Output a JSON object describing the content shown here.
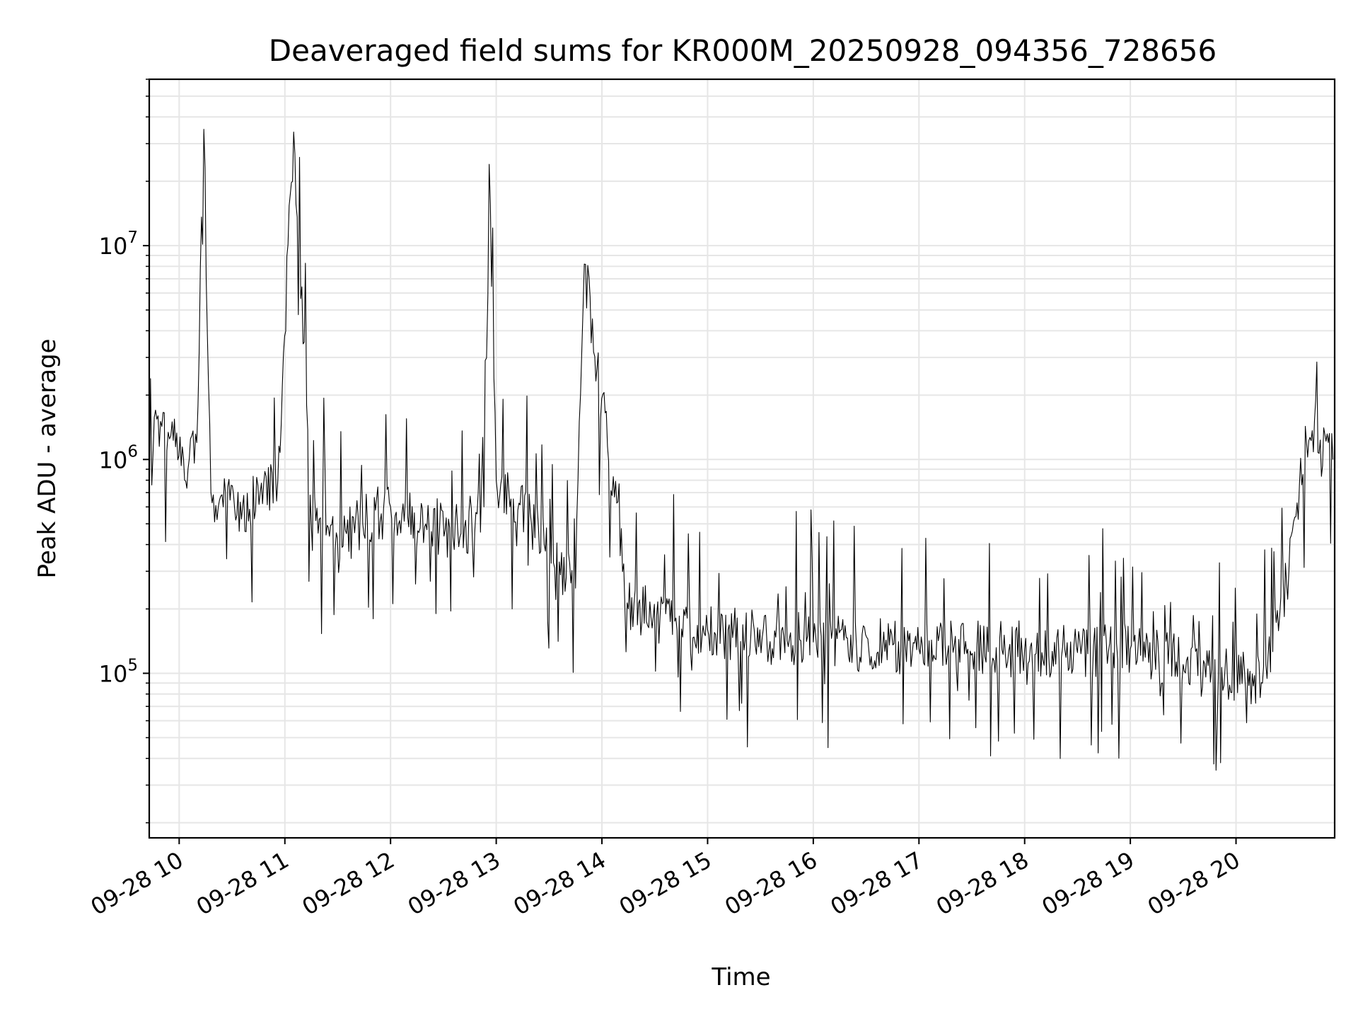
{
  "chart_data": {
    "type": "line",
    "title": "Deaveraged field sums for KR000M_20250928_094356_728656",
    "xlabel": "Time",
    "ylabel": "Peak ADU - average",
    "yscale": "log",
    "ylim": [
      17000,
      60000000
    ],
    "xlim": [
      "2025-09-28 09:43",
      "2025-09-28 20:56"
    ],
    "grid": true,
    "line_color": "#000000",
    "grid_color": "#e6e6e6",
    "x_ticks": [
      {
        "t": "2025-09-28 10:00",
        "label": "09-28 10"
      },
      {
        "t": "2025-09-28 11:00",
        "label": "09-28 11"
      },
      {
        "t": "2025-09-28 12:00",
        "label": "09-28 12"
      },
      {
        "t": "2025-09-28 13:00",
        "label": "09-28 13"
      },
      {
        "t": "2025-09-28 14:00",
        "label": "09-28 14"
      },
      {
        "t": "2025-09-28 15:00",
        "label": "09-28 15"
      },
      {
        "t": "2025-09-28 16:00",
        "label": "09-28 16"
      },
      {
        "t": "2025-09-28 17:00",
        "label": "09-28 17"
      },
      {
        "t": "2025-09-28 18:00",
        "label": "09-28 18"
      },
      {
        "t": "2025-09-28 19:00",
        "label": "09-28 19"
      },
      {
        "t": "2025-09-28 20:00",
        "label": "09-28 20"
      }
    ],
    "y_ticks": [
      {
        "value": 100000,
        "base": "10",
        "exp": "5"
      },
      {
        "value": 1000000,
        "base": "10",
        "exp": "6"
      },
      {
        "value": 10000000,
        "base": "10",
        "exp": "7"
      }
    ],
    "series": [
      {
        "values": [
          [
            "2025-09-28 09:43",
            800000
          ],
          [
            "2025-09-28 09:48",
            1600000
          ],
          [
            "2025-09-28 09:53",
            1100000
          ],
          [
            "2025-09-28 09:56",
            1500000
          ],
          [
            "2025-09-28 10:05",
            900000
          ],
          [
            "2025-09-28 10:10",
            1200000
          ],
          [
            "2025-09-28 10:14",
            35000000
          ],
          [
            "2025-09-28 10:18",
            700000
          ],
          [
            "2025-09-28 10:25",
            600000
          ],
          [
            "2025-09-28 10:36",
            600000
          ],
          [
            "2025-09-28 10:46",
            700000
          ],
          [
            "2025-09-28 10:56",
            800000
          ],
          [
            "2025-09-28 11:05",
            34000000
          ],
          [
            "2025-09-28 11:15",
            500000
          ],
          [
            "2025-09-28 11:35",
            450000
          ],
          [
            "2025-09-28 12:00",
            600000
          ],
          [
            "2025-09-28 12:20",
            500000
          ],
          [
            "2025-09-28 12:40",
            450000
          ],
          [
            "2025-09-28 12:53",
            600000
          ],
          [
            "2025-09-28 12:56",
            24000000
          ],
          [
            "2025-09-28 13:00",
            800000
          ],
          [
            "2025-09-28 13:20",
            500000
          ],
          [
            "2025-09-28 13:45",
            250000
          ],
          [
            "2025-09-28 13:50",
            8200000
          ],
          [
            "2025-09-28 14:15",
            200000
          ],
          [
            "2025-09-28 15:00",
            160000
          ],
          [
            "2025-09-28 16:00",
            140000
          ],
          [
            "2025-09-28 17:00",
            130000
          ],
          [
            "2025-09-28 18:00",
            130000
          ],
          [
            "2025-09-28 18:30",
            125000
          ],
          [
            "2025-09-28 19:00",
            130000
          ],
          [
            "2025-09-28 19:30",
            110000
          ],
          [
            "2025-09-28 20:15",
            90000
          ],
          [
            "2025-09-28 20:30",
            300000
          ],
          [
            "2025-09-28 20:40",
            1200000
          ],
          [
            "2025-09-28 20:55",
            1000000
          ]
        ]
      }
    ]
  }
}
